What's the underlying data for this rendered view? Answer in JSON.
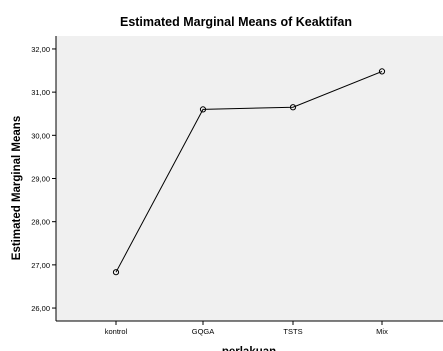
{
  "chart_data": {
    "type": "line",
    "title": "Estimated Marginal Means of Keaktifan",
    "xlabel": "perlakuan",
    "ylabel": "Estimated Marginal Means",
    "categories": [
      "kontrol",
      "GQGA",
      "TSTS",
      "Mix"
    ],
    "series": [
      {
        "values": [
          26.83,
          30.6,
          30.65,
          31.48
        ],
        "marker": "circle"
      }
    ],
    "ylim": [
      25.7,
      32.3
    ],
    "yticks": [
      26,
      27,
      28,
      29,
      30,
      31,
      32
    ],
    "ytick_labels": [
      "26,00",
      "27,00",
      "28,00",
      "29,00",
      "30,00",
      "31,00",
      "32,00"
    ],
    "grid": false,
    "colors": {
      "plot_background": "#f0f0f0",
      "line": "#000000",
      "axis": "#000000"
    }
  }
}
